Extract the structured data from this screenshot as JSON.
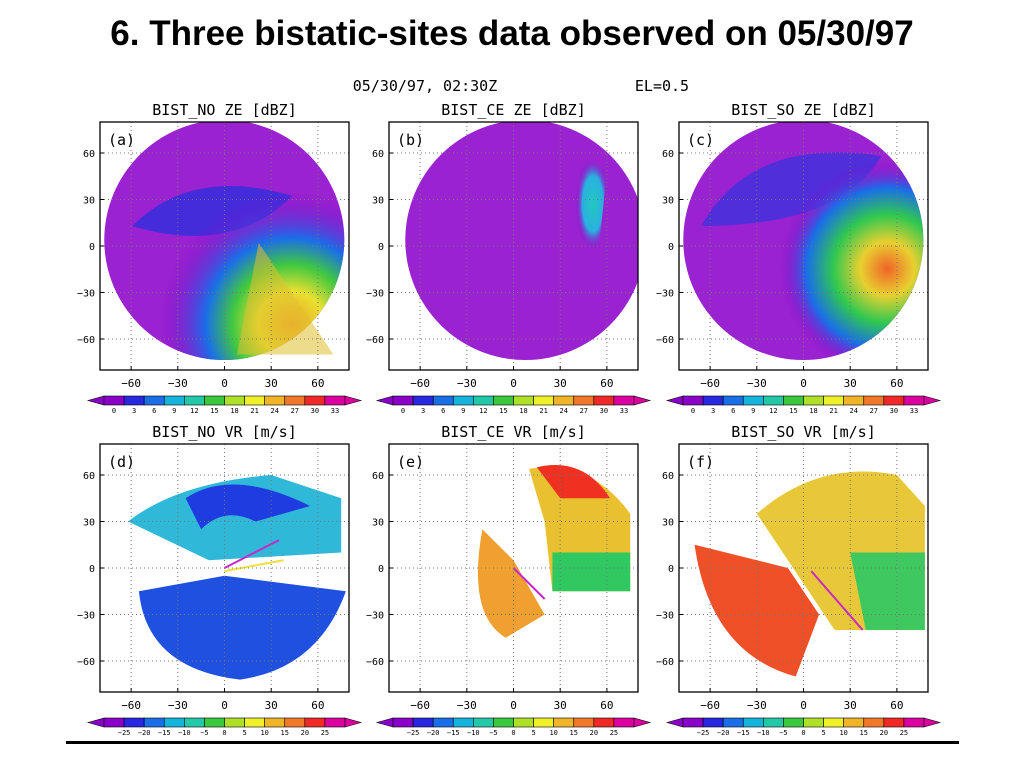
{
  "slide": {
    "title": "6. Three bistatic-sites data observed on 05/30/97"
  },
  "header": {
    "datetime": "05/30/97, 02:30Z",
    "elevation": "EL=0.5"
  },
  "colors": {
    "zeScale": [
      "#8a00c8",
      "#2828e0",
      "#1a6ee8",
      "#14b4dc",
      "#22c8a8",
      "#3cc83c",
      "#aee028",
      "#f0f028",
      "#f0b428",
      "#f07828",
      "#f02828",
      "#dc00a0"
    ],
    "vrScale": [
      "#8a00c8",
      "#2828e0",
      "#1a6ee8",
      "#14b4dc",
      "#22c8a8",
      "#3cc83c",
      "#aee028",
      "#f0f028",
      "#f0b428",
      "#f07828",
      "#f02828",
      "#dc00a0"
    ],
    "zeBackground": "#9a22d0",
    "vrNoData": "#ffffff"
  },
  "colorbars": {
    "ze": [
      "0",
      "3",
      "6",
      "9",
      "12",
      "15",
      "18",
      "21",
      "24",
      "27",
      "30",
      "33"
    ],
    "vr": [
      "-25",
      "-20",
      "-15",
      "-10",
      "-5",
      "0",
      "5",
      "10",
      "15",
      "20",
      "25"
    ]
  },
  "chart_data": [
    {
      "id": "a",
      "panel_label": "(a)",
      "title": "BIST_NO ZE [dBZ]",
      "type": "heatmap",
      "xticks": [
        "-60",
        "-30",
        "0",
        "30",
        "60"
      ],
      "yticks": [
        "60",
        "30",
        "0",
        "-30",
        "-60"
      ],
      "xlim": [
        -80,
        80
      ],
      "ylim": [
        -80,
        80
      ],
      "grid": true,
      "legend_ticks": "colorbars.ze",
      "series_name": "reflectivity ZE (dBZ)"
    },
    {
      "id": "b",
      "panel_label": "(b)",
      "title": "BIST_CE ZE [dBZ]",
      "type": "heatmap",
      "xticks": [
        "-60",
        "-30",
        "0",
        "30",
        "60"
      ],
      "yticks": [
        "60",
        "30",
        "0",
        "-30",
        "-60"
      ],
      "xlim": [
        -80,
        80
      ],
      "ylim": [
        -80,
        80
      ],
      "grid": true,
      "legend_ticks": "colorbars.ze",
      "series_name": "reflectivity ZE (dBZ)"
    },
    {
      "id": "c",
      "panel_label": "(c)",
      "title": "BIST_SO ZE [dBZ]",
      "type": "heatmap",
      "xticks": [
        "-60",
        "-30",
        "0",
        "30",
        "60"
      ],
      "yticks": [
        "60",
        "30",
        "0",
        "-30",
        "-60"
      ],
      "xlim": [
        -80,
        80
      ],
      "ylim": [
        -80,
        80
      ],
      "grid": true,
      "legend_ticks": "colorbars.ze",
      "series_name": "reflectivity ZE (dBZ)"
    },
    {
      "id": "d",
      "panel_label": "(d)",
      "title": "BIST_NO VR [m/s]",
      "type": "heatmap",
      "xticks": [
        "-60",
        "-30",
        "0",
        "30",
        "60"
      ],
      "yticks": [
        "60",
        "30",
        "0",
        "-30",
        "-60"
      ],
      "xlim": [
        -80,
        80
      ],
      "ylim": [
        -80,
        80
      ],
      "grid": true,
      "legend_ticks": "colorbars.vr",
      "series_name": "radial velocity VR (m/s)"
    },
    {
      "id": "e",
      "panel_label": "(e)",
      "title": "BIST_CE VR [m/s]",
      "type": "heatmap",
      "xticks": [
        "-60",
        "-30",
        "0",
        "30",
        "60"
      ],
      "yticks": [
        "60",
        "30",
        "0",
        "-30",
        "-60"
      ],
      "xlim": [
        -80,
        80
      ],
      "ylim": [
        -80,
        80
      ],
      "grid": true,
      "legend_ticks": "colorbars.vr",
      "series_name": "radial velocity VR (m/s)"
    },
    {
      "id": "f",
      "panel_label": "(f)",
      "title": "BIST_SO VR [m/s]",
      "type": "heatmap",
      "xticks": [
        "-60",
        "-30",
        "0",
        "30",
        "60"
      ],
      "yticks": [
        "60",
        "30",
        "0",
        "-30",
        "-60"
      ],
      "xlim": [
        -80,
        80
      ],
      "ylim": [
        -80,
        80
      ],
      "grid": true,
      "legend_ticks": "colorbars.vr",
      "series_name": "radial velocity VR (m/s)"
    }
  ]
}
